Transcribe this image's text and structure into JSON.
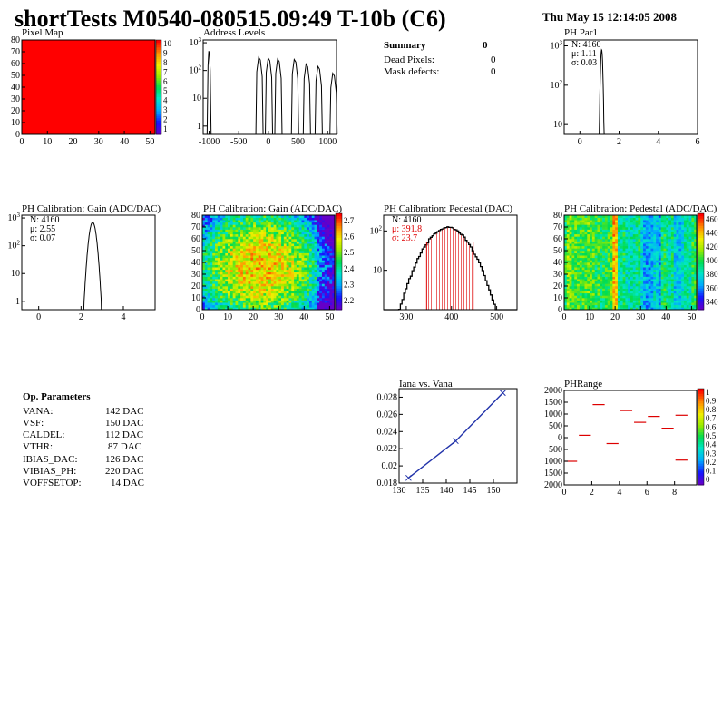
{
  "header": {
    "title": "shortTests M0540-080515.09:49 T-10b (C6)",
    "date": "Thu May 15 12:14:05 2008"
  },
  "summary": {
    "title": "Summary",
    "total": "0",
    "rows": [
      {
        "label": "Dead Pixels:",
        "value": "0"
      },
      {
        "label": "Mask defects:",
        "value": "0"
      }
    ]
  },
  "op_parameters": {
    "title": "Op. Parameters",
    "rows": [
      {
        "label": "VANA:",
        "value": "142 DAC"
      },
      {
        "label": "VSF:",
        "value": "150 DAC"
      },
      {
        "label": "CALDEL:",
        "value": "112 DAC"
      },
      {
        "label": "VTHR:",
        "value": "87 DAC"
      },
      {
        "label": "IBIAS_DAC:",
        "value": "126 DAC"
      },
      {
        "label": "VIBIAS_PH:",
        "value": "220 DAC"
      },
      {
        "label": "VOFFSETOP:",
        "value": "14 DAC"
      }
    ]
  },
  "colors": {
    "red": "#ff0000",
    "blue": "#0000cc",
    "line_blue": "#2233aa"
  },
  "chart_data": [
    {
      "id": "pixel-map",
      "type": "heatmap",
      "title": "Pixel Map",
      "xlim": [
        0,
        52
      ],
      "ylim": [
        0,
        80
      ],
      "xticks": [
        "0",
        "10",
        "20",
        "30",
        "40",
        "50"
      ],
      "yticks": [
        "0",
        "10",
        "20",
        "30",
        "40",
        "50",
        "60",
        "70",
        "80"
      ],
      "uniform_value": 10,
      "zticks": [
        "1",
        "2",
        "3",
        "4",
        "5",
        "6",
        "7",
        "8",
        "9",
        "10"
      ]
    },
    {
      "id": "address-levels",
      "type": "bar",
      "title": "Address Levels",
      "log_y": true,
      "xlim": [
        -1100,
        1150
      ],
      "xticks": [
        "-1000",
        "-500",
        "0",
        "500",
        "1000"
      ],
      "yticks": [
        "1",
        "10",
        "10^2",
        "10^3"
      ],
      "peaks": [
        {
          "x": -1000,
          "height": 500
        },
        {
          "x": -150,
          "height": 300
        },
        {
          "x": 10,
          "height": 280
        },
        {
          "x": 170,
          "height": 260
        },
        {
          "x": 450,
          "height": 250
        },
        {
          "x": 650,
          "height": 170
        },
        {
          "x": 850,
          "height": 140
        },
        {
          "x": 1100,
          "height": 80
        }
      ]
    },
    {
      "id": "ph-par1",
      "type": "bar",
      "title": "PH Par1",
      "log_y": true,
      "xlim": [
        -0.8,
        6
      ],
      "xticks": [
        "0",
        "2",
        "4",
        "6"
      ],
      "yticks": [
        "10",
        "10^2",
        "10^3"
      ],
      "stats": {
        "N": "N: 4160",
        "mu": "μ: 1.11",
        "sigma": "σ: 0.03"
      },
      "peak_center": 1.11,
      "peak_sigma": 0.03,
      "peak_height": 800
    },
    {
      "id": "ph-gain",
      "type": "bar",
      "title": "PH Calibration: Gain (ADC/DAC)",
      "log_y": true,
      "xlim": [
        -0.8,
        5.5
      ],
      "xticks": [
        "0",
        "2",
        "4"
      ],
      "yticks": [
        "1",
        "10",
        "10^2",
        "10^3"
      ],
      "stats": {
        "N": "N: 4160",
        "mu": "μ: 2.55",
        "sigma": "σ: 0.07"
      },
      "peak_center": 2.55,
      "peak_sigma": 0.07,
      "peak_height": 700
    },
    {
      "id": "ph-gain-map",
      "type": "heatmap",
      "title": "PH Calibration: Gain (ADC/DAC)",
      "xlim": [
        0,
        52
      ],
      "ylim": [
        0,
        80
      ],
      "xticks": [
        "0",
        "10",
        "20",
        "30",
        "40",
        "50"
      ],
      "yticks": [
        "0",
        "10",
        "20",
        "30",
        "40",
        "50",
        "60",
        "70",
        "80"
      ],
      "zticks": [
        "2.2",
        "2.3",
        "2.4",
        "2.5",
        "2.6",
        "2.7"
      ],
      "zlim": [
        2.15,
        2.72
      ]
    },
    {
      "id": "ph-pedestal",
      "type": "bar",
      "title": "PH Calibration: Pedestal (DAC)",
      "log_y": true,
      "xlim": [
        250,
        545
      ],
      "xticks": [
        "300",
        "400",
        "500"
      ],
      "yticks": [
        "10",
        "10^2"
      ],
      "stats": {
        "N": "N: 4160",
        "mu": "μ: 391.8",
        "sigma": "σ: 23.7"
      },
      "mean": 391.8,
      "sigma": 23.7,
      "peak_height": 120
    },
    {
      "id": "ph-pedestal-map",
      "type": "heatmap",
      "title": "PH Calibration: Pedestal (ADC/DAC)",
      "xlim": [
        0,
        52
      ],
      "ylim": [
        0,
        80
      ],
      "xticks": [
        "0",
        "10",
        "20",
        "30",
        "40",
        "50"
      ],
      "yticks": [
        "0",
        "10",
        "20",
        "30",
        "40",
        "50",
        "60",
        "70",
        "80"
      ],
      "zticks": [
        "340",
        "360",
        "380",
        "400",
        "420",
        "440",
        "460"
      ]
    },
    {
      "id": "iana-vs-vana",
      "type": "line",
      "title": "Iana vs. Vana",
      "xlim": [
        130,
        155
      ],
      "ylim": [
        0.018,
        0.029
      ],
      "xticks": [
        "130",
        "135",
        "140",
        "145",
        "150"
      ],
      "yticks": [
        "0.018",
        "0.02",
        "0.022",
        "0.024",
        "0.026",
        "0.028"
      ],
      "x": [
        132,
        142,
        152
      ],
      "y": [
        0.0186,
        0.0229,
        0.0285
      ]
    },
    {
      "id": "phrange",
      "type": "heatmap",
      "title": "PHRange",
      "xlim": [
        0,
        9.6
      ],
      "ylim": [
        -2000,
        2000
      ],
      "xticks": [
        "0",
        "2",
        "4",
        "6",
        "8"
      ],
      "yticks": [
        "2000",
        "1500",
        "1000",
        "500",
        "0",
        "500",
        "1000",
        "1500",
        "2000"
      ],
      "zticks": [
        "0",
        "0.1",
        "0.2",
        "0.3",
        "0.4",
        "0.5",
        "0.6",
        "0.7",
        "0.8",
        "0.9",
        "1"
      ],
      "segments": [
        {
          "x0": 0,
          "x1": 1,
          "y": -1000
        },
        {
          "x0": 1,
          "x1": 2,
          "y": 100
        },
        {
          "x0": 2,
          "x1": 3,
          "y": 1400
        },
        {
          "x0": 3,
          "x1": 4,
          "y": -250
        },
        {
          "x0": 4,
          "x1": 5,
          "y": 1150
        },
        {
          "x0": 5,
          "x1": 6,
          "y": 650
        },
        {
          "x0": 6,
          "x1": 7,
          "y": 900
        },
        {
          "x0": 7,
          "x1": 8,
          "y": 400
        },
        {
          "x0": 8,
          "x1": 9,
          "y": 950
        },
        {
          "x0": 8,
          "x1": 9,
          "y": -950
        }
      ]
    }
  ]
}
